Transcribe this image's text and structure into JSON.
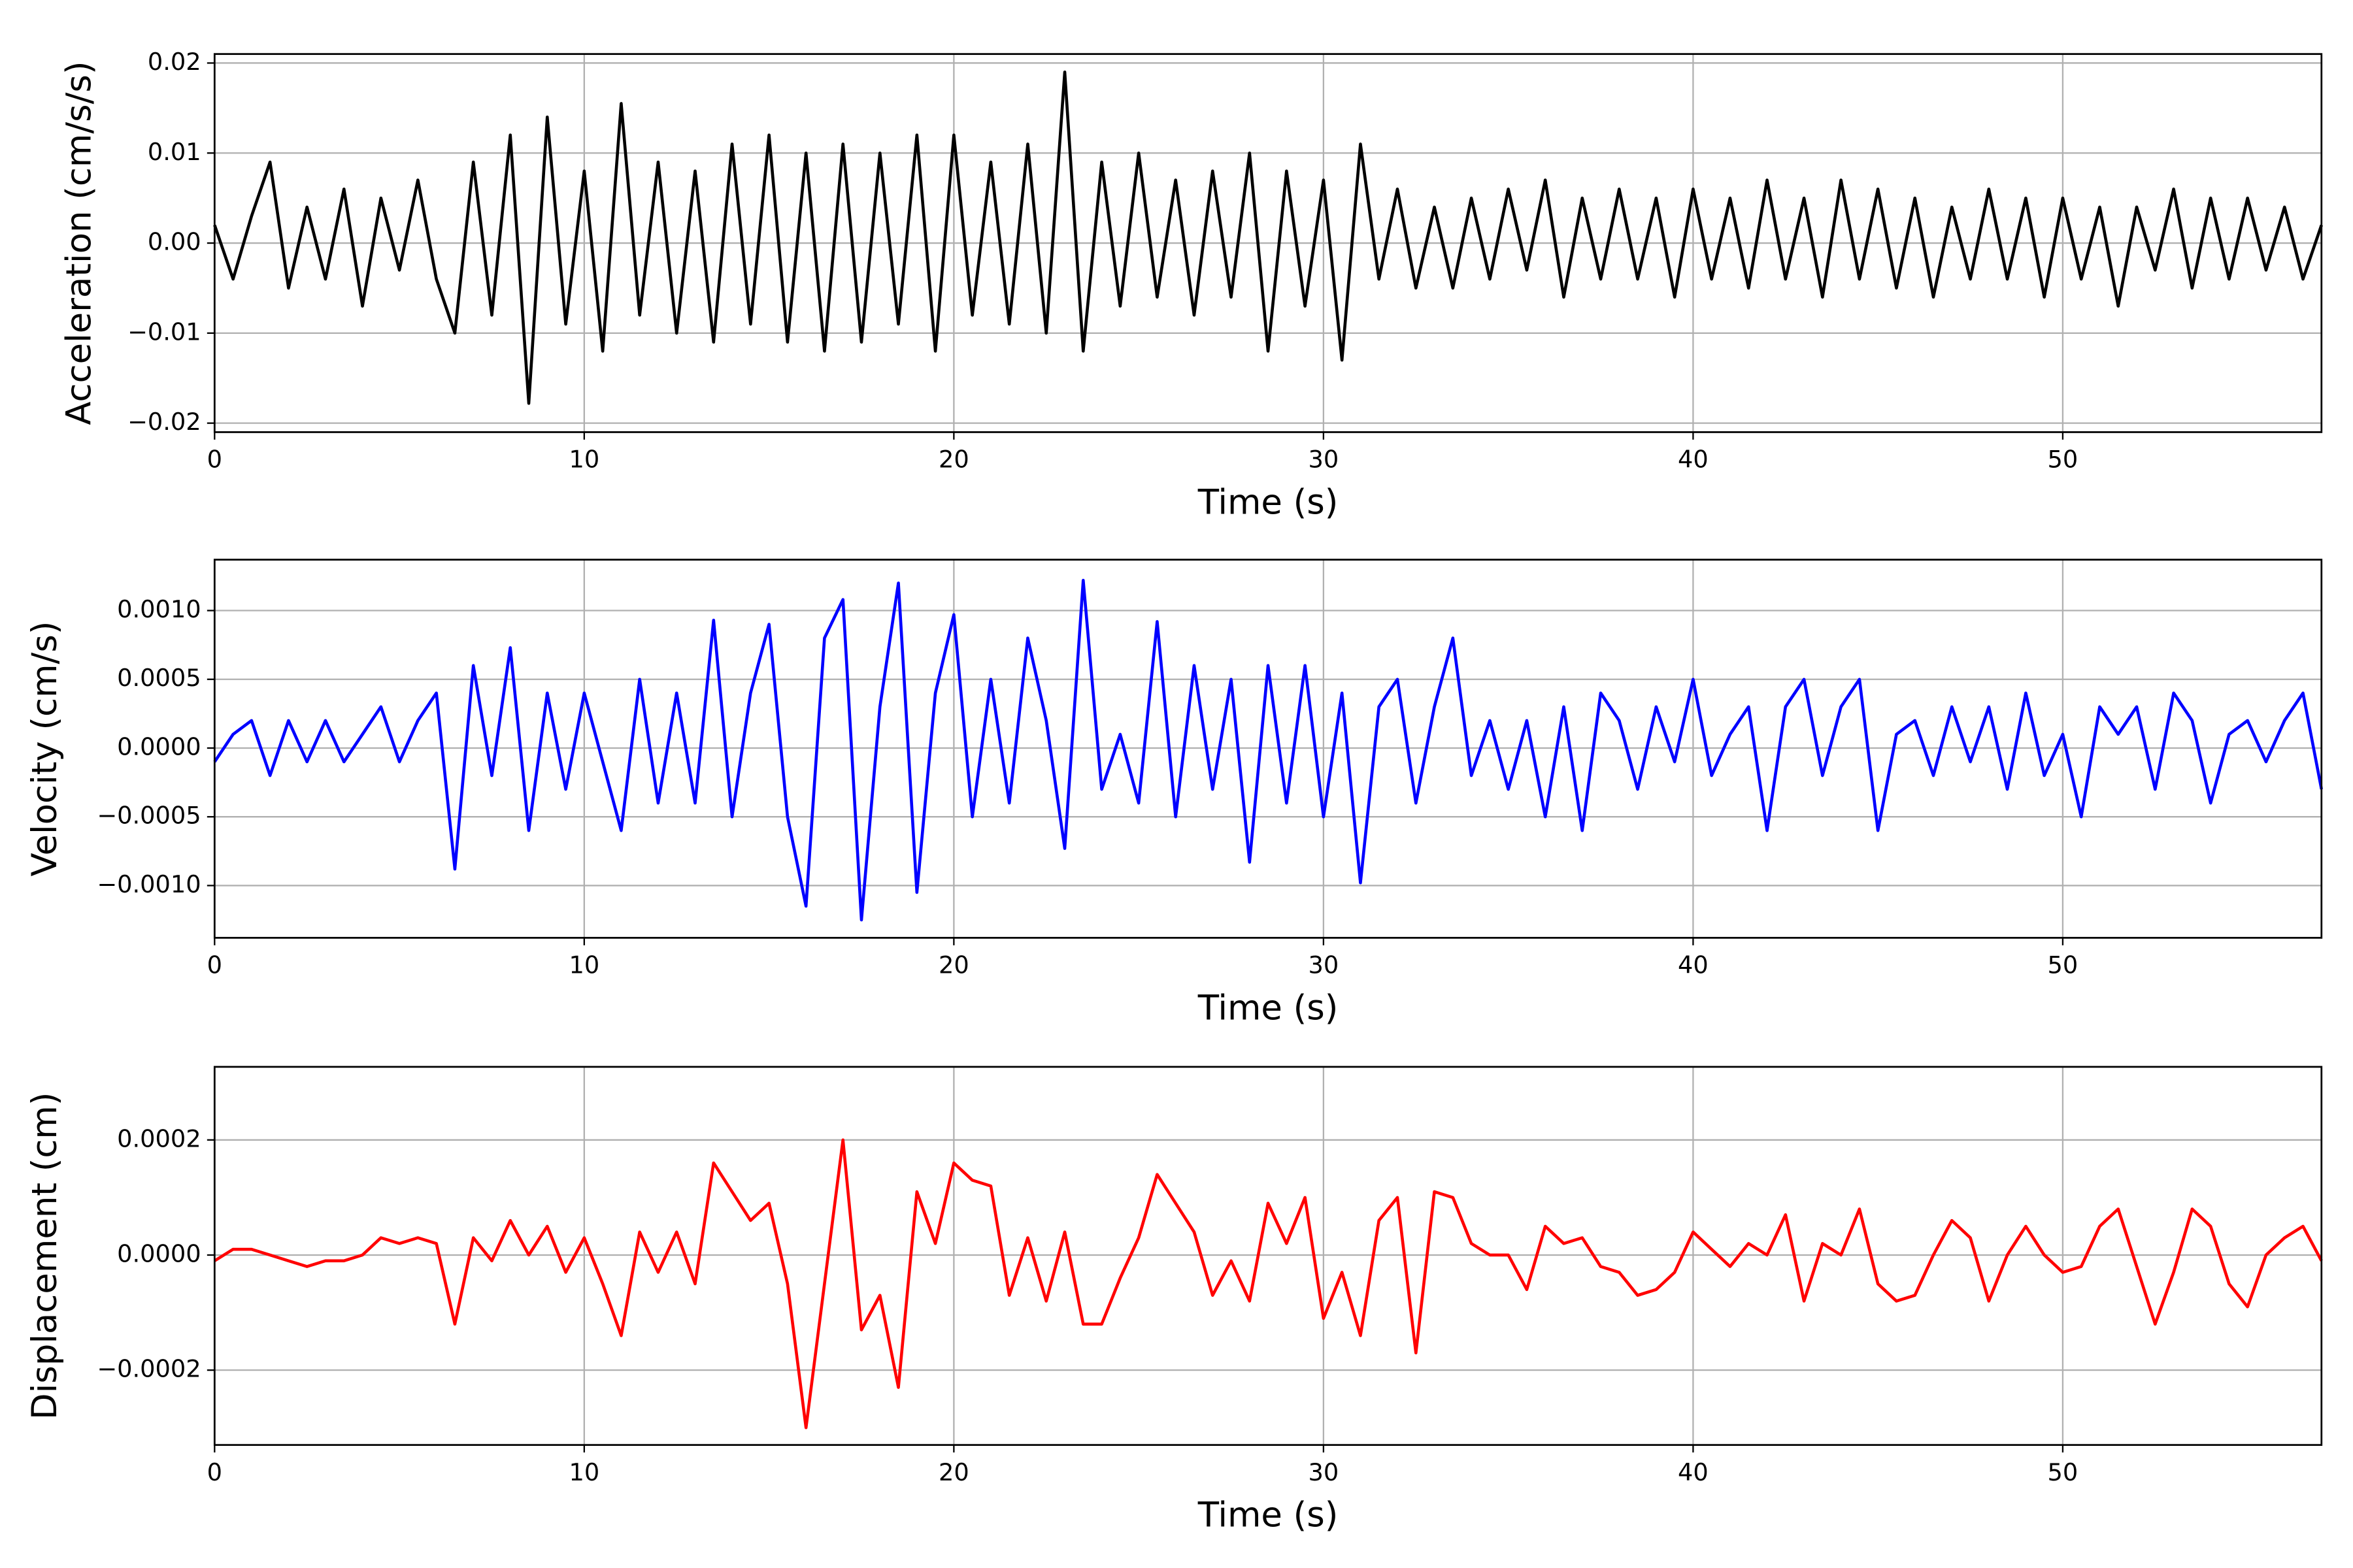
{
  "chart_data": [
    {
      "type": "line",
      "x_label": "Time (s)",
      "y_label": "Acceleration (cm/s/s)",
      "color": "#000000",
      "grid": true,
      "x": [
        0,
        0.5,
        1,
        1.5,
        2,
        2.5,
        3,
        3.5,
        4,
        4.5,
        5,
        5.5,
        6,
        6.5,
        7,
        7.5,
        8,
        8.5,
        9,
        9.5,
        10,
        10.5,
        11,
        11.5,
        12,
        12.5,
        13,
        13.5,
        14,
        14.5,
        15,
        15.5,
        16,
        16.5,
        17,
        17.5,
        18,
        18.5,
        19,
        19.5,
        20,
        20.5,
        21,
        21.5,
        22,
        22.5,
        23,
        23.5,
        24,
        24.5,
        25,
        25.5,
        26,
        26.5,
        27,
        27.5,
        28,
        28.5,
        29,
        29.5,
        30,
        30.5,
        31,
        31.5,
        32,
        32.5,
        33,
        33.5,
        34,
        34.5,
        35,
        35.5,
        36,
        36.5,
        37,
        37.5,
        38,
        38.5,
        39,
        39.5,
        40,
        40.5,
        41,
        41.5,
        42,
        42.5,
        43,
        43.5,
        44,
        44.5,
        45,
        45.5,
        46,
        46.5,
        47,
        47.5,
        48,
        48.5,
        49,
        49.5,
        50,
        50.5,
        51,
        51.5,
        52,
        52.5,
        53,
        53.5,
        54,
        54.5,
        55,
        55.5,
        56,
        56.5,
        57
      ],
      "values": [
        0.002,
        -0.004,
        0.003,
        0.009,
        -0.005,
        0.004,
        -0.004,
        0.006,
        -0.007,
        0.005,
        -0.003,
        0.007,
        -0.004,
        -0.01,
        0.009,
        -0.008,
        0.012,
        -0.0178,
        0.014,
        -0.009,
        0.008,
        -0.012,
        0.0155,
        -0.008,
        0.009,
        -0.01,
        0.008,
        -0.011,
        0.011,
        -0.009,
        0.012,
        -0.011,
        0.01,
        -0.012,
        0.011,
        -0.011,
        0.01,
        -0.009,
        0.012,
        -0.012,
        0.012,
        -0.008,
        0.009,
        -0.009,
        0.011,
        -0.01,
        0.019,
        -0.012,
        0.009,
        -0.007,
        0.01,
        -0.006,
        0.007,
        -0.008,
        0.008,
        -0.006,
        0.01,
        -0.012,
        0.008,
        -0.007,
        0.007,
        -0.013,
        0.011,
        -0.004,
        0.006,
        -0.005,
        0.004,
        -0.005,
        0.005,
        -0.004,
        0.006,
        -0.003,
        0.007,
        -0.006,
        0.005,
        -0.004,
        0.006,
        -0.004,
        0.005,
        -0.006,
        0.006,
        -0.004,
        0.005,
        -0.005,
        0.007,
        -0.004,
        0.005,
        -0.006,
        0.007,
        -0.004,
        0.006,
        -0.005,
        0.005,
        -0.006,
        0.004,
        -0.004,
        0.006,
        -0.004,
        0.005,
        -0.006,
        0.005,
        -0.004,
        0.004,
        -0.007,
        0.004,
        -0.003,
        0.006,
        -0.005,
        0.005,
        -0.004,
        0.005,
        -0.003,
        0.004,
        -0.004,
        0.002
      ],
      "xlim": [
        0,
        57
      ],
      "xticks": [
        0,
        10,
        20,
        30,
        40,
        50
      ],
      "ylim": [
        -0.021,
        0.021
      ],
      "yticks": [
        {
          "value": -0.02,
          "label": "−0.02"
        },
        {
          "value": -0.01,
          "label": "−0.01"
        },
        {
          "value": 0,
          "label": "0.00"
        },
        {
          "value": 0.01,
          "label": "0.01"
        },
        {
          "value": 0.02,
          "label": "0.02"
        }
      ]
    },
    {
      "type": "line",
      "x_label": "Time (s)",
      "y_label": "Velocity (cm/s)",
      "color": "#0000ff",
      "grid": true,
      "x": [
        0,
        0.5,
        1,
        1.5,
        2,
        2.5,
        3,
        3.5,
        4,
        4.5,
        5,
        5.5,
        6,
        6.5,
        7,
        7.5,
        8,
        8.5,
        9,
        9.5,
        10,
        10.5,
        11,
        11.5,
        12,
        12.5,
        13,
        13.5,
        14,
        14.5,
        15,
        15.5,
        16,
        16.5,
        17,
        17.5,
        18,
        18.5,
        19,
        19.5,
        20,
        20.5,
        21,
        21.5,
        22,
        22.5,
        23,
        23.5,
        24,
        24.5,
        25,
        25.5,
        26,
        26.5,
        27,
        27.5,
        28,
        28.5,
        29,
        29.5,
        30,
        30.5,
        31,
        31.5,
        32,
        32.5,
        33,
        33.5,
        34,
        34.5,
        35,
        35.5,
        36,
        36.5,
        37,
        37.5,
        38,
        38.5,
        39,
        39.5,
        40,
        40.5,
        41,
        41.5,
        42,
        42.5,
        43,
        43.5,
        44,
        44.5,
        45,
        45.5,
        46,
        46.5,
        47,
        47.5,
        48,
        48.5,
        49,
        49.5,
        50,
        50.5,
        51,
        51.5,
        52,
        52.5,
        53,
        53.5,
        54,
        54.5,
        55,
        55.5,
        56,
        56.5,
        57
      ],
      "values": [
        -0.0001,
        0.0001,
        0.0002,
        -0.0002,
        0.0002,
        -0.0001,
        0.0002,
        -0.0001,
        0.0001,
        0.0003,
        -0.0001,
        0.0002,
        0.0004,
        -0.00088,
        0.0006,
        -0.0002,
        0.00073,
        -0.0006,
        0.0004,
        -0.0003,
        0.0004,
        -0.0001,
        -0.0006,
        0.0005,
        -0.0004,
        0.0004,
        -0.0004,
        0.00093,
        -0.0005,
        0.0004,
        0.0009,
        -0.0005,
        -0.00115,
        0.0008,
        0.00108,
        -0.00125,
        0.0003,
        0.0012,
        -0.00105,
        0.0004,
        0.00097,
        -0.0005,
        0.0005,
        -0.0004,
        0.0008,
        0.0002,
        -0.00073,
        0.00122,
        -0.0003,
        0.0001,
        -0.0004,
        0.00092,
        -0.0005,
        0.0006,
        -0.0003,
        0.0005,
        -0.00083,
        0.0006,
        -0.0004,
        0.0006,
        -0.0005,
        0.0004,
        -0.00098,
        0.0003,
        0.0005,
        -0.0004,
        0.0003,
        0.0008,
        -0.0002,
        0.0002,
        -0.0003,
        0.0002,
        -0.0005,
        0.0003,
        -0.0006,
        0.0004,
        0.0002,
        -0.0003,
        0.0003,
        -0.0001,
        0.0005,
        -0.0002,
        0.0001,
        0.0003,
        -0.0006,
        0.0003,
        0.0005,
        -0.0002,
        0.0003,
        0.0005,
        -0.0006,
        0.0001,
        0.0002,
        -0.0002,
        0.0003,
        -0.0001,
        0.0003,
        -0.0003,
        0.0004,
        -0.0002,
        0.0001,
        -0.0005,
        0.0003,
        0.0001,
        0.0003,
        -0.0003,
        0.0004,
        0.0002,
        -0.0004,
        0.0001,
        0.0002,
        -0.0001,
        0.0002,
        0.0004,
        -0.0003
      ],
      "xlim": [
        0,
        57
      ],
      "xticks": [
        0,
        10,
        20,
        30,
        40,
        50
      ],
      "ylim": [
        -0.00138,
        0.00137
      ],
      "yticks": [
        {
          "value": -0.001,
          "label": "−0.0010"
        },
        {
          "value": -0.0005,
          "label": "−0.0005"
        },
        {
          "value": 0,
          "label": "0.0000"
        },
        {
          "value": 0.0005,
          "label": "0.0005"
        },
        {
          "value": 0.001,
          "label": "0.0010"
        }
      ]
    },
    {
      "type": "line",
      "x_label": "Time (s)",
      "y_label": "Displacement (cm)",
      "color": "#ff0000",
      "grid": true,
      "x": [
        0,
        0.5,
        1,
        1.5,
        2,
        2.5,
        3,
        3.5,
        4,
        4.5,
        5,
        5.5,
        6,
        6.5,
        7,
        7.5,
        8,
        8.5,
        9,
        9.5,
        10,
        10.5,
        11,
        11.5,
        12,
        12.5,
        13,
        13.5,
        14,
        14.5,
        15,
        15.5,
        16,
        16.5,
        17,
        17.5,
        18,
        18.5,
        19,
        19.5,
        20,
        20.5,
        21,
        21.5,
        22,
        22.5,
        23,
        23.5,
        24,
        24.5,
        25,
        25.5,
        26,
        26.5,
        27,
        27.5,
        28,
        28.5,
        29,
        29.5,
        30,
        30.5,
        31,
        31.5,
        32,
        32.5,
        33,
        33.5,
        34,
        34.5,
        35,
        35.5,
        36,
        36.5,
        37,
        37.5,
        38,
        38.5,
        39,
        39.5,
        40,
        40.5,
        41,
        41.5,
        42,
        42.5,
        43,
        43.5,
        44,
        44.5,
        45,
        45.5,
        46,
        46.5,
        47,
        47.5,
        48,
        48.5,
        49,
        49.5,
        50,
        50.5,
        51,
        51.5,
        52,
        52.5,
        53,
        53.5,
        54,
        54.5,
        55,
        55.5,
        56,
        56.5,
        57
      ],
      "values": [
        -1e-05,
        1e-05,
        1e-05,
        0.0,
        -1e-05,
        -2e-05,
        -1e-05,
        -1e-05,
        0.0,
        3e-05,
        2e-05,
        3e-05,
        2e-05,
        -0.00012,
        3e-05,
        -1e-05,
        6e-05,
        0.0,
        5e-05,
        -3e-05,
        3e-05,
        -5e-05,
        -0.00014,
        4e-05,
        -3e-05,
        4e-05,
        -5e-05,
        0.00016,
        0.00011,
        6e-05,
        9e-05,
        -5e-05,
        -0.0003,
        -5e-05,
        0.0002,
        -0.00013,
        -7e-05,
        -0.00023,
        0.00011,
        2e-05,
        0.00016,
        0.00013,
        0.00012,
        -7e-05,
        3e-05,
        -8e-05,
        4e-05,
        -0.00012,
        -0.00012,
        -4e-05,
        3e-05,
        0.00014,
        9e-05,
        4e-05,
        -7e-05,
        -1e-05,
        -8e-05,
        9e-05,
        2e-05,
        0.0001,
        -0.00011,
        -3e-05,
        -0.00014,
        6e-05,
        0.0001,
        -0.00017,
        0.00011,
        0.0001,
        2e-05,
        0.0,
        0.0,
        -6e-05,
        5e-05,
        2e-05,
        3e-05,
        -2e-05,
        -3e-05,
        -7e-05,
        -6e-05,
        -3e-05,
        4e-05,
        1e-05,
        -2e-05,
        2e-05,
        0.0,
        7e-05,
        -8e-05,
        2e-05,
        0.0,
        8e-05,
        -5e-05,
        -8e-05,
        -7e-05,
        0.0,
        6e-05,
        3e-05,
        -8e-05,
        0.0,
        5e-05,
        0.0,
        -3e-05,
        -2e-05,
        5e-05,
        8e-05,
        -2e-05,
        -0.00012,
        -3e-05,
        8e-05,
        5e-05,
        -5e-05,
        -9e-05,
        0.0,
        3e-05,
        5e-05,
        -1e-05
      ],
      "xlim": [
        0,
        57
      ],
      "xticks": [
        0,
        10,
        20,
        30,
        40,
        50
      ],
      "ylim": [
        -0.00033,
        0.000327
      ],
      "yticks": [
        {
          "value": -0.0002,
          "label": "−0.0002"
        },
        {
          "value": 0,
          "label": "0.0000"
        },
        {
          "value": 0.0002,
          "label": "0.0002"
        }
      ]
    }
  ]
}
